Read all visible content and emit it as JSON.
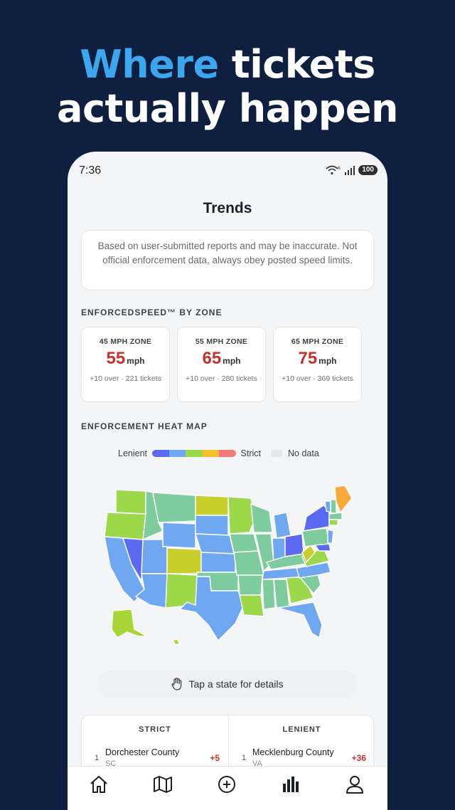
{
  "headline": {
    "accent": "Where",
    "line1_rest": " tickets",
    "line2": "actually happen"
  },
  "status": {
    "time": "7:36",
    "wifi_badge": "6",
    "battery": "100"
  },
  "screen": {
    "title": "Trends"
  },
  "disclaimer": {
    "text": "Based on user-submitted reports and may be inaccurate. Not official enforcement data, always obey posted speed limits."
  },
  "zones_section": {
    "label": "ENFORCEDSPEED™ BY ZONE",
    "cards": [
      {
        "name": "45 MPH ZONE",
        "speed": "55",
        "unit": "mph",
        "sub": "+10 over · 221 tickets"
      },
      {
        "name": "55 MPH ZONE",
        "speed": "65",
        "unit": "mph",
        "sub": "+10 over · 280 tickets"
      },
      {
        "name": "65 MPH ZONE",
        "speed": "75",
        "unit": "mph",
        "sub": "+10 over · 369 tickets"
      }
    ]
  },
  "heatmap": {
    "label": "ENFORCEMENT HEAT MAP",
    "legend": {
      "lenient": "Lenient",
      "strict": "Strict",
      "no_data": "No data",
      "scale_colors": [
        "#5b6af0",
        "#6fa8f0",
        "#9bd84a",
        "#f7bf2c",
        "#f07a78"
      ]
    },
    "tap_hint": "Tap a state for details"
  },
  "rankings": {
    "strict": {
      "header": "STRICT",
      "rank": "1",
      "name": "Dorchester County",
      "state": "SC",
      "delta": "+5"
    },
    "lenient": {
      "header": "LENIENT",
      "rank": "1",
      "name": "Mecklenburg County",
      "state": "VA",
      "delta": "+36"
    }
  },
  "tabbar": {
    "icons": [
      "home-icon",
      "map-icon",
      "add-icon",
      "trends-icon",
      "profile-icon"
    ],
    "active": "trends-icon"
  }
}
